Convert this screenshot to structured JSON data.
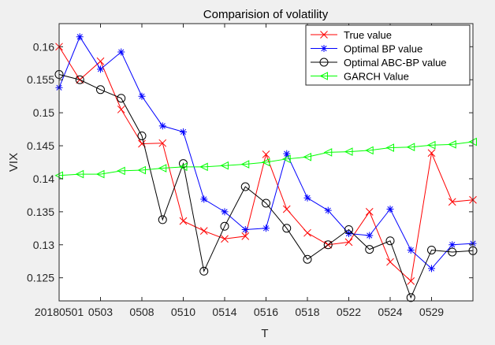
{
  "chart_data": {
    "type": "line",
    "title": "Comparision of volatility",
    "xlabel": "T",
    "ylabel": "VIX",
    "xlim": [
      1,
      21
    ],
    "ylim": [
      0.1215,
      0.1635
    ],
    "grid": false,
    "legend_position": "top-right",
    "x_ticks": [
      {
        "x": 1,
        "label": "20180501"
      },
      {
        "x": 3,
        "label": "0503"
      },
      {
        "x": 5,
        "label": "0508"
      },
      {
        "x": 7,
        "label": "0510"
      },
      {
        "x": 9,
        "label": "0514"
      },
      {
        "x": 11,
        "label": "0516"
      },
      {
        "x": 13,
        "label": "0518"
      },
      {
        "x": 15,
        "label": "0522"
      },
      {
        "x": 17,
        "label": "0524"
      },
      {
        "x": 19,
        "label": "0529"
      }
    ],
    "y_ticks": [
      {
        "y": 0.125,
        "label": "0.125"
      },
      {
        "y": 0.13,
        "label": "0.13"
      },
      {
        "y": 0.135,
        "label": "0.135"
      },
      {
        "y": 0.14,
        "label": "0.14"
      },
      {
        "y": 0.145,
        "label": "0.145"
      },
      {
        "y": 0.15,
        "label": "0.15"
      },
      {
        "y": 0.155,
        "label": "0.155"
      },
      {
        "y": 0.16,
        "label": "0.16"
      }
    ],
    "series": [
      {
        "name": "True value",
        "color": "#ff0000",
        "marker": "x",
        "x": [
          1,
          2,
          3,
          4,
          5,
          6,
          7,
          8,
          9,
          10,
          11,
          12,
          13,
          14,
          15,
          16,
          17,
          18,
          19,
          20,
          21
        ],
        "y": [
          0.16,
          0.155,
          0.1578,
          0.1505,
          0.1453,
          0.1454,
          0.1336,
          0.1321,
          0.1309,
          0.1313,
          0.1437,
          0.1354,
          0.1318,
          0.13,
          0.1304,
          0.135,
          0.1274,
          0.1245,
          0.1439,
          0.1365,
          0.1368
        ]
      },
      {
        "name": "Optimal BP value",
        "color": "#0000ff",
        "marker": "*",
        "x": [
          1,
          2,
          3,
          4,
          5,
          6,
          7,
          8,
          9,
          10,
          11,
          12,
          13,
          14,
          15,
          16,
          17,
          18,
          19,
          20,
          21
        ],
        "y": [
          0.1538,
          0.1615,
          0.1566,
          0.1592,
          0.1525,
          0.148,
          0.1471,
          0.1369,
          0.135,
          0.1323,
          0.1325,
          0.1438,
          0.1371,
          0.1352,
          0.1317,
          0.1314,
          0.1354,
          0.1292,
          0.1264,
          0.13,
          0.1302
        ]
      },
      {
        "name": "Optimal ABC-BP value",
        "color": "#000000",
        "marker": "o",
        "x": [
          1,
          2,
          3,
          4,
          5,
          6,
          7,
          8,
          9,
          10,
          11,
          12,
          13,
          14,
          15,
          16,
          17,
          18,
          19,
          20,
          21
        ],
        "y": [
          0.1558,
          0.155,
          0.1535,
          0.1522,
          0.1465,
          0.1338,
          0.1423,
          0.126,
          0.1328,
          0.1388,
          0.1363,
          0.1325,
          0.1278,
          0.13,
          0.1323,
          0.1293,
          0.1306,
          0.122,
          0.1292,
          0.1289,
          0.1291
        ]
      },
      {
        "name": "GARCH Value",
        "color": "#00ff00",
        "marker": "<",
        "x": [
          1,
          2,
          3,
          4,
          5,
          6,
          7,
          8,
          9,
          10,
          11,
          12,
          13,
          14,
          15,
          16,
          17,
          18,
          19,
          20,
          21
        ],
        "y": [
          0.1405,
          0.1407,
          0.1407,
          0.1412,
          0.1413,
          0.1416,
          0.1418,
          0.1418,
          0.142,
          0.1422,
          0.1425,
          0.143,
          0.1433,
          0.144,
          0.1441,
          0.1443,
          0.1447,
          0.1448,
          0.1451,
          0.1452,
          0.1456
        ]
      }
    ]
  }
}
